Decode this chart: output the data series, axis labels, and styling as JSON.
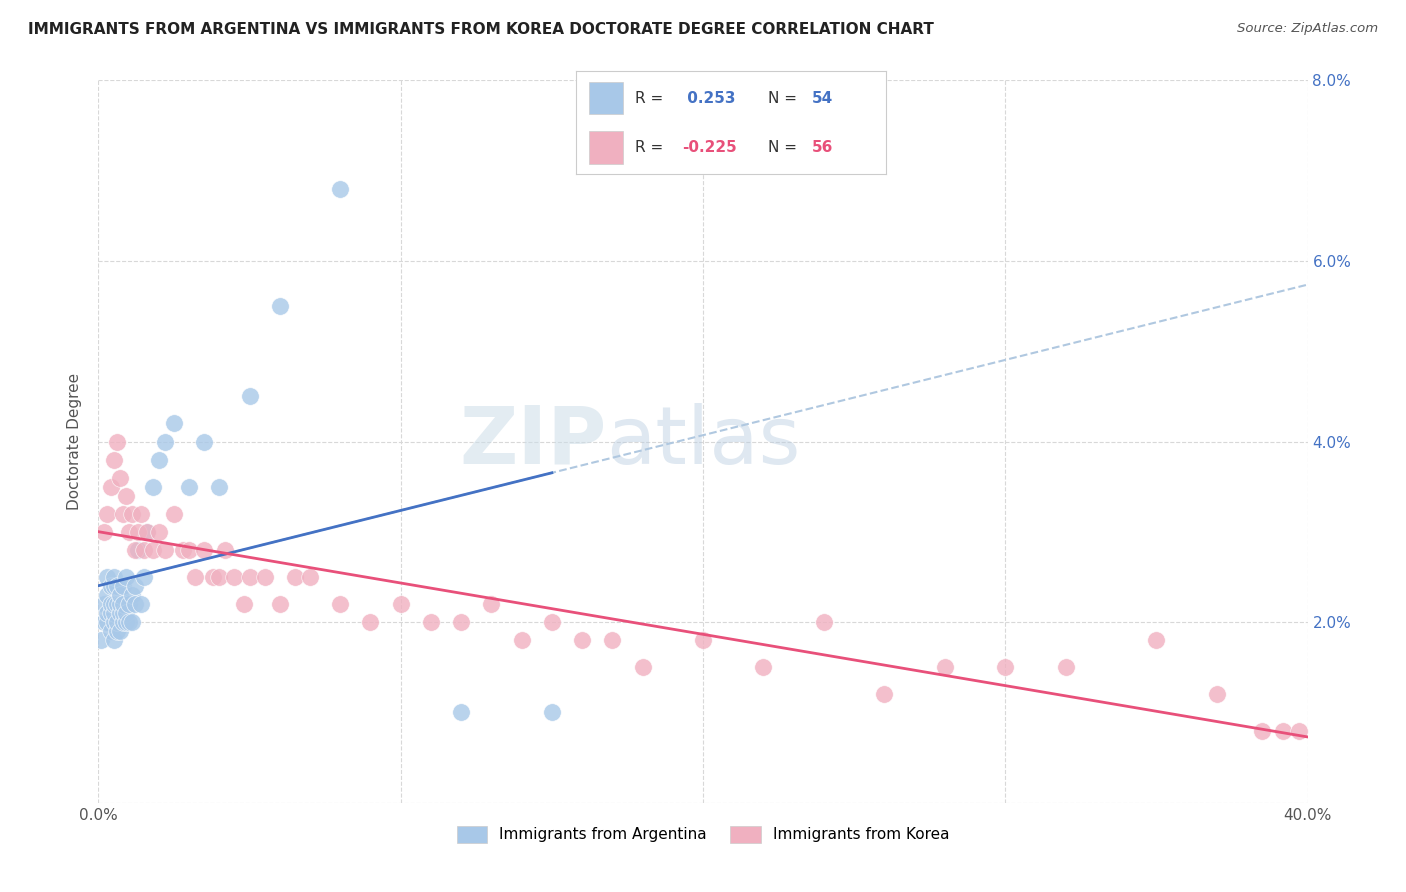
{
  "title": "IMMIGRANTS FROM ARGENTINA VS IMMIGRANTS FROM KOREA DOCTORATE DEGREE CORRELATION CHART",
  "source": "Source: ZipAtlas.com",
  "ylabel": "Doctorate Degree",
  "xlim": [
    0.0,
    0.4
  ],
  "ylim": [
    0.0,
    0.08
  ],
  "xticks": [
    0.0,
    0.1,
    0.2,
    0.3,
    0.4
  ],
  "xtick_labels": [
    "0.0%",
    "",
    "",
    "",
    "40.0%"
  ],
  "yticks_right": [
    0.0,
    0.02,
    0.04,
    0.06,
    0.08
  ],
  "ytick_labels_right": [
    "",
    "2.0%",
    "4.0%",
    "6.0%",
    "8.0%"
  ],
  "legend_label_blue": "Immigrants from Argentina",
  "legend_label_pink": "Immigrants from Korea",
  "watermark_zip": "ZIP",
  "watermark_atlas": "atlas",
  "bg_color": "#ffffff",
  "grid_color": "#d8d8d8",
  "blue_scatter_color": "#a8c8e8",
  "pink_scatter_color": "#f0b0c0",
  "blue_line_color": "#4472c4",
  "pink_line_color": "#e8507a",
  "blue_dashed_color": "#b0c8e0",
  "blue_legend_patch": "#a8c8e8",
  "pink_legend_patch": "#f0b0c0",
  "argentina_x": [
    0.001,
    0.002,
    0.002,
    0.003,
    0.003,
    0.003,
    0.003,
    0.004,
    0.004,
    0.004,
    0.004,
    0.005,
    0.005,
    0.005,
    0.005,
    0.005,
    0.005,
    0.006,
    0.006,
    0.006,
    0.006,
    0.007,
    0.007,
    0.007,
    0.007,
    0.008,
    0.008,
    0.008,
    0.008,
    0.009,
    0.009,
    0.009,
    0.01,
    0.01,
    0.011,
    0.011,
    0.012,
    0.012,
    0.013,
    0.014,
    0.015,
    0.016,
    0.018,
    0.02,
    0.022,
    0.025,
    0.03,
    0.035,
    0.04,
    0.05,
    0.06,
    0.08,
    0.12,
    0.15
  ],
  "argentina_y": [
    0.018,
    0.02,
    0.022,
    0.02,
    0.021,
    0.023,
    0.025,
    0.019,
    0.021,
    0.022,
    0.024,
    0.018,
    0.02,
    0.021,
    0.022,
    0.024,
    0.025,
    0.019,
    0.02,
    0.022,
    0.024,
    0.019,
    0.021,
    0.022,
    0.023,
    0.02,
    0.021,
    0.022,
    0.024,
    0.02,
    0.021,
    0.025,
    0.02,
    0.022,
    0.02,
    0.023,
    0.022,
    0.024,
    0.028,
    0.022,
    0.025,
    0.03,
    0.035,
    0.038,
    0.04,
    0.042,
    0.035,
    0.04,
    0.035,
    0.045,
    0.055,
    0.068,
    0.01,
    0.01
  ],
  "korea_x": [
    0.002,
    0.003,
    0.004,
    0.005,
    0.006,
    0.007,
    0.008,
    0.009,
    0.01,
    0.011,
    0.012,
    0.013,
    0.014,
    0.015,
    0.016,
    0.018,
    0.02,
    0.022,
    0.025,
    0.028,
    0.03,
    0.032,
    0.035,
    0.038,
    0.04,
    0.042,
    0.045,
    0.048,
    0.05,
    0.055,
    0.06,
    0.065,
    0.07,
    0.08,
    0.09,
    0.1,
    0.11,
    0.12,
    0.13,
    0.14,
    0.15,
    0.16,
    0.17,
    0.18,
    0.2,
    0.22,
    0.24,
    0.26,
    0.28,
    0.3,
    0.32,
    0.35,
    0.37,
    0.385,
    0.392,
    0.397
  ],
  "korea_y": [
    0.03,
    0.032,
    0.035,
    0.038,
    0.04,
    0.036,
    0.032,
    0.034,
    0.03,
    0.032,
    0.028,
    0.03,
    0.032,
    0.028,
    0.03,
    0.028,
    0.03,
    0.028,
    0.032,
    0.028,
    0.028,
    0.025,
    0.028,
    0.025,
    0.025,
    0.028,
    0.025,
    0.022,
    0.025,
    0.025,
    0.022,
    0.025,
    0.025,
    0.022,
    0.02,
    0.022,
    0.02,
    0.02,
    0.022,
    0.018,
    0.02,
    0.018,
    0.018,
    0.015,
    0.018,
    0.015,
    0.02,
    0.012,
    0.015,
    0.015,
    0.015,
    0.018,
    0.012,
    0.008,
    0.008,
    0.008
  ]
}
